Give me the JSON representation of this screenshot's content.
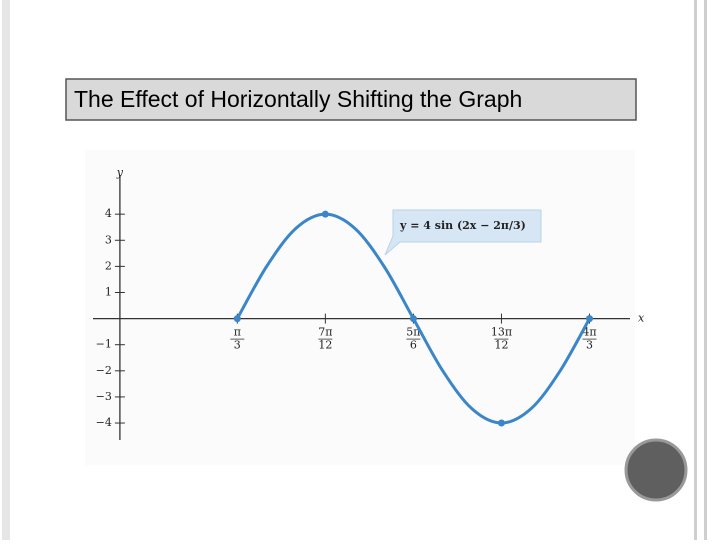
{
  "chart_data": {
    "type": "line",
    "title": "The Effect of Horizontally Shifting the Graph",
    "annotation": "y = 4 sin (2x − 2π/3)",
    "xlabel": "x",
    "ylabel": "y",
    "color": "#3a86c8",
    "x": [
      1.0472,
      1.309,
      1.5708,
      1.8326,
      2.0944,
      2.3562,
      2.618,
      2.8798,
      3.1416,
      3.4034,
      3.6652,
      3.927,
      4.1888
    ],
    "values": [
      0,
      2,
      3.46,
      4,
      3.46,
      2,
      0,
      -2,
      -3.46,
      -4,
      -3.46,
      -2,
      0
    ],
    "points": {
      "x": [
        1.0472,
        1.8326,
        2.618,
        3.4034,
        4.1888
      ],
      "values": [
        0,
        4,
        0,
        -4,
        0
      ]
    },
    "xlim": [
      -0.24,
      4.55
    ],
    "ylim": [
      -4.65,
      5.5
    ],
    "xticks": [
      {
        "value": 1.0472,
        "label": "π/3"
      },
      {
        "value": 1.8326,
        "label": "7π/12"
      },
      {
        "value": 2.618,
        "label": "5π/6"
      },
      {
        "value": 3.4034,
        "label": "13π/12"
      },
      {
        "value": 4.1888,
        "label": "4π/3"
      }
    ],
    "yticks": [
      {
        "value": -4,
        "label": "−4"
      },
      {
        "value": -3,
        "label": "−3"
      },
      {
        "value": -2,
        "label": "−2"
      },
      {
        "value": -1,
        "label": "−1"
      },
      1,
      2,
      3,
      4
    ]
  }
}
